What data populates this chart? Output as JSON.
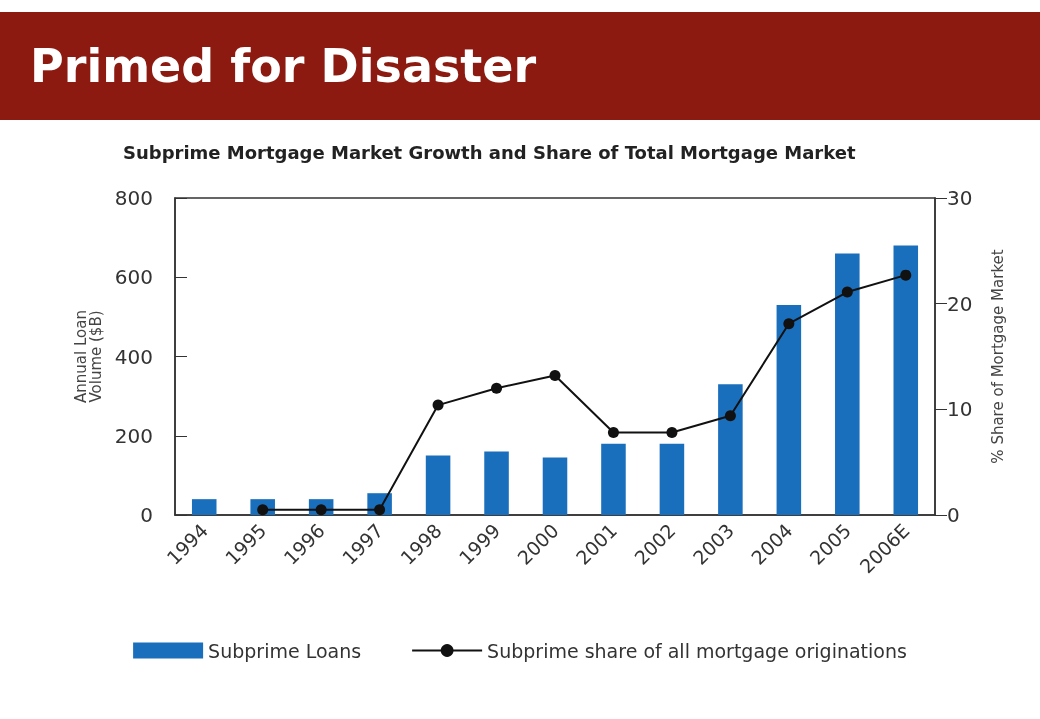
{
  "chart_data": {
    "type": "bar",
    "title": "Primed for Disaster",
    "subtitle": "Subprime Mortgage Market Growth and Share of Total Mortgage Market",
    "ylabel": "Annual Loan\nVolume ($B)",
    "y2label": "% Share of Mortgage Market",
    "categories": [
      "1994",
      "1995",
      "1996",
      "1997",
      "1998",
      "1999",
      "2000",
      "2001",
      "2002",
      "2003",
      "2004",
      "2005",
      "2006E"
    ],
    "series": [
      {
        "name": "Subprime Loans",
        "color": "#1a6fbd",
        "values": [
          40,
          40,
          40,
          55,
          150,
          160,
          145,
          180,
          180,
          330,
          530,
          660,
          680
        ]
      },
      {
        "name": "Subprime share of all mortgage originations",
        "type": "line",
        "axis": "y2",
        "color": "#111111",
        "marker": "circle",
        "values": [
          null,
          0.5,
          0.5,
          0.5,
          10.4,
          12.0,
          13.2,
          7.8,
          7.8,
          9.4,
          18.1,
          21.1,
          22.7
        ]
      }
    ],
    "ylim": [
      0,
      800
    ],
    "yticks": [
      0,
      200,
      400,
      600,
      800
    ],
    "y2lim": [
      0,
      30
    ],
    "y2ticks": [
      0,
      10,
      20,
      30
    ],
    "grid": false,
    "legend": "bottom"
  }
}
